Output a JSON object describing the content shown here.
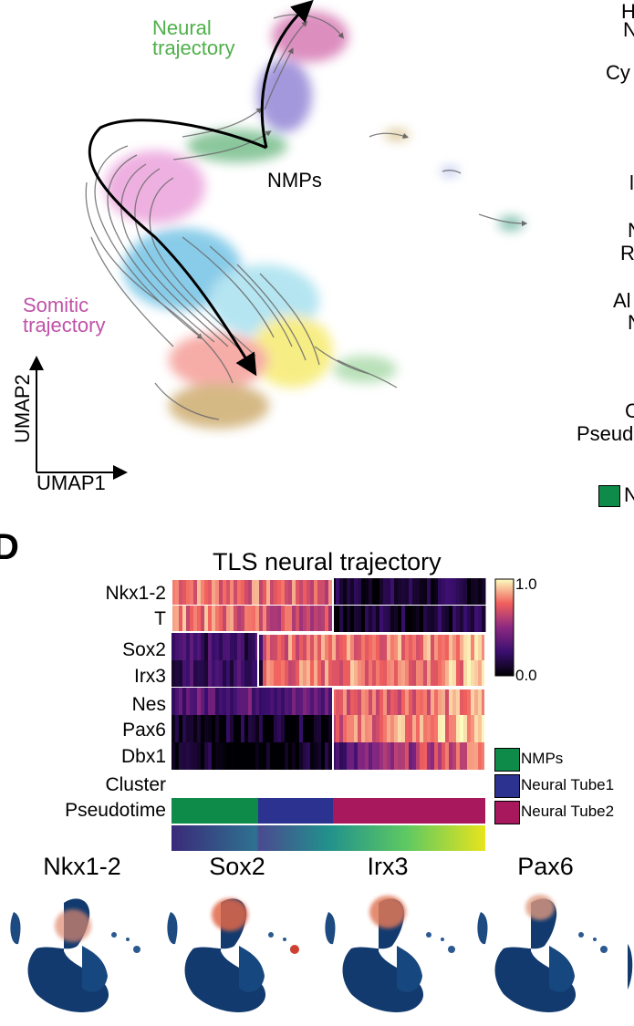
{
  "panel_c": {
    "trajectory_labels": {
      "neural": "Neural\ntrajectory",
      "somitic": "Somitic\ntrajectory",
      "nmps": "NMPs"
    },
    "axes": {
      "y": "UMAP2",
      "x": "UMAP1"
    },
    "colors": {
      "neural_label": "#4fb04a",
      "somitic_label": "#c052a8"
    },
    "clipped_right_text": [
      "H",
      "N",
      "Cy",
      "l",
      "N",
      "R",
      "Al",
      "N",
      "C",
      "Pseud",
      "N"
    ]
  },
  "panel_d": {
    "letter": "D",
    "title": "TLS neural trajectory",
    "row_labels": [
      "Nkx1-2",
      "T",
      "Sox2",
      "Irx3",
      "Nes",
      "Pax6",
      "Dbx1",
      "Cluster",
      "Pseudotime"
    ],
    "colorbar": {
      "max_label": "1.0",
      "min_label": "0.0"
    },
    "legend": [
      {
        "label": "NMPs",
        "color": "#0e8a49"
      },
      {
        "label": "Neural Tube1",
        "color": "#2b3290"
      },
      {
        "label": "Neural Tube2",
        "color": "#a8185c"
      }
    ]
  },
  "panel_e": {
    "genes": [
      "Nkx1-2",
      "Sox2",
      "Irx3",
      "Pax6"
    ]
  }
}
